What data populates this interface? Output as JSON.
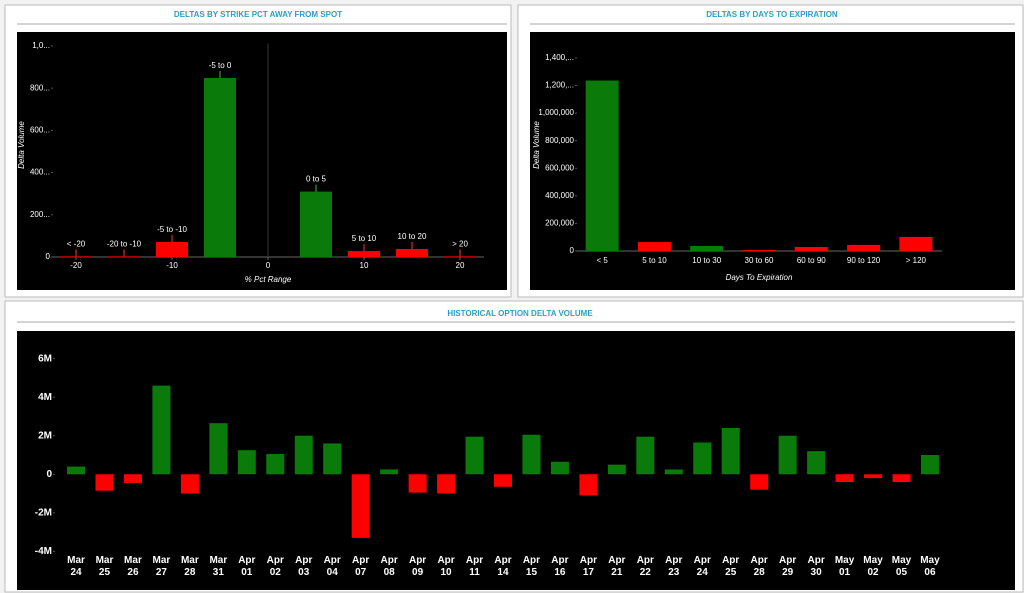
{
  "chart_data": [
    {
      "type": "bar",
      "title": "DELTAS BY STRIKE PCT AWAY FROM SPOT",
      "x_label": "% Pct Range",
      "y_label": "Delta Volume",
      "categories": [
        "< -20",
        "-20 to -10",
        "-5 to -10",
        "-5 to 0",
        "0 to 5",
        "5 to 10",
        "10 to 20",
        "> 20"
      ],
      "x": [
        -20,
        -15,
        -10,
        -5,
        5,
        10,
        15,
        20
      ],
      "values": [
        3000,
        3000,
        71000,
        848000,
        310000,
        28000,
        38000,
        3000
      ],
      "colors": [
        "#ff0000",
        "#ff0000",
        "#ff0000",
        "#0a7a0a",
        "#0a7a0a",
        "#ff0000",
        "#ff0000",
        "#ff0000"
      ],
      "xlim": [
        -22.5,
        22.5
      ],
      "xticks": [
        -20,
        -10,
        0,
        10,
        20
      ],
      "ylim": [
        0,
        1050000
      ],
      "yticks": [
        0,
        {
          "value": 200000,
          "label": "200..."
        },
        {
          "value": 400000,
          "label": "400..."
        },
        {
          "value": 600000,
          "label": "600..."
        },
        {
          "value": 800000,
          "label": "800..."
        },
        {
          "value": 1000000,
          "label": "1,0..."
        }
      ],
      "grid": false,
      "data_labels": true
    },
    {
      "type": "bar",
      "title": "DELTAS BY DAYS TO EXPIRATION",
      "x_label": "Days To Expiration",
      "y_label": "Delta Volume",
      "categories": [
        "< 5",
        "5 to 10",
        "10 to 30",
        "30 to 60",
        "60 to 90",
        "90 to 120",
        "> 120"
      ],
      "values": [
        1236000,
        65000,
        36000,
        7000,
        29000,
        44000,
        102000
      ],
      "colors": [
        "#0a7a0a",
        "#ff0000",
        "#0a7a0a",
        "#ff0000",
        "#ff0000",
        "#ff0000",
        "#ff0000"
      ],
      "ylim": [
        0,
        1450000
      ],
      "yticks": [
        0,
        {
          "value": 200000,
          "label": "200,000"
        },
        {
          "value": 400000,
          "label": "400,000"
        },
        {
          "value": 600000,
          "label": "600,000"
        },
        {
          "value": 800000,
          "label": "800,000"
        },
        {
          "value": 1000000,
          "label": "1,000,000"
        },
        {
          "value": 1200000,
          "label": "1,200,..."
        },
        {
          "value": 1400000,
          "label": "1,400,..."
        }
      ],
      "grid": false,
      "data_labels": false
    },
    {
      "type": "bar",
      "title": "HISTORICAL OPTION DELTA VOLUME",
      "categories": [
        "Mar 24",
        "Mar 25",
        "Mar 26",
        "Mar 27",
        "Mar 28",
        "Mar 31",
        "Apr 01",
        "Apr 02",
        "Apr 03",
        "Apr 04",
        "Apr 07",
        "Apr 08",
        "Apr 09",
        "Apr 10",
        "Apr 11",
        "Apr 14",
        "Apr 15",
        "Apr 16",
        "Apr 17",
        "Apr 21",
        "Apr 22",
        "Apr 23",
        "Apr 24",
        "Apr 25",
        "Apr 28",
        "Apr 29",
        "Apr 30",
        "May 01",
        "May 02",
        "May 05",
        "May 06"
      ],
      "values": [
        400000,
        -850000,
        -450000,
        4600000,
        -1000000,
        2650000,
        1250000,
        1050000,
        2000000,
        1600000,
        -3300000,
        250000,
        -950000,
        -1000000,
        1950000,
        -650000,
        2050000,
        650000,
        -1100000,
        500000,
        1950000,
        250000,
        1650000,
        2400000,
        -800000,
        2000000,
        1200000,
        -400000,
        -200000,
        -400000,
        1000000
      ],
      "colors": [
        "#0a7a0a",
        "#ff0000",
        "#ff0000",
        "#0a7a0a",
        "#ff0000",
        "#0a7a0a",
        "#0a7a0a",
        "#0a7a0a",
        "#0a7a0a",
        "#0a7a0a",
        "#ff0000",
        "#0a7a0a",
        "#ff0000",
        "#ff0000",
        "#0a7a0a",
        "#ff0000",
        "#0a7a0a",
        "#0a7a0a",
        "#ff0000",
        "#0a7a0a",
        "#0a7a0a",
        "#0a7a0a",
        "#0a7a0a",
        "#0a7a0a",
        "#ff0000",
        "#0a7a0a",
        "#0a7a0a",
        "#ff0000",
        "#ff0000",
        "#ff0000",
        "#0a7a0a"
      ],
      "ylim": [
        -4500000,
        6500000
      ],
      "yticks": [
        {
          "value": -4000000,
          "label": "-4M"
        },
        {
          "value": -2000000,
          "label": "-2M"
        },
        0,
        {
          "value": 2000000,
          "label": "2M"
        },
        {
          "value": 4000000,
          "label": "4M"
        },
        {
          "value": 6000000,
          "label": "6M"
        }
      ],
      "grid": false,
      "data_labels": false
    }
  ]
}
